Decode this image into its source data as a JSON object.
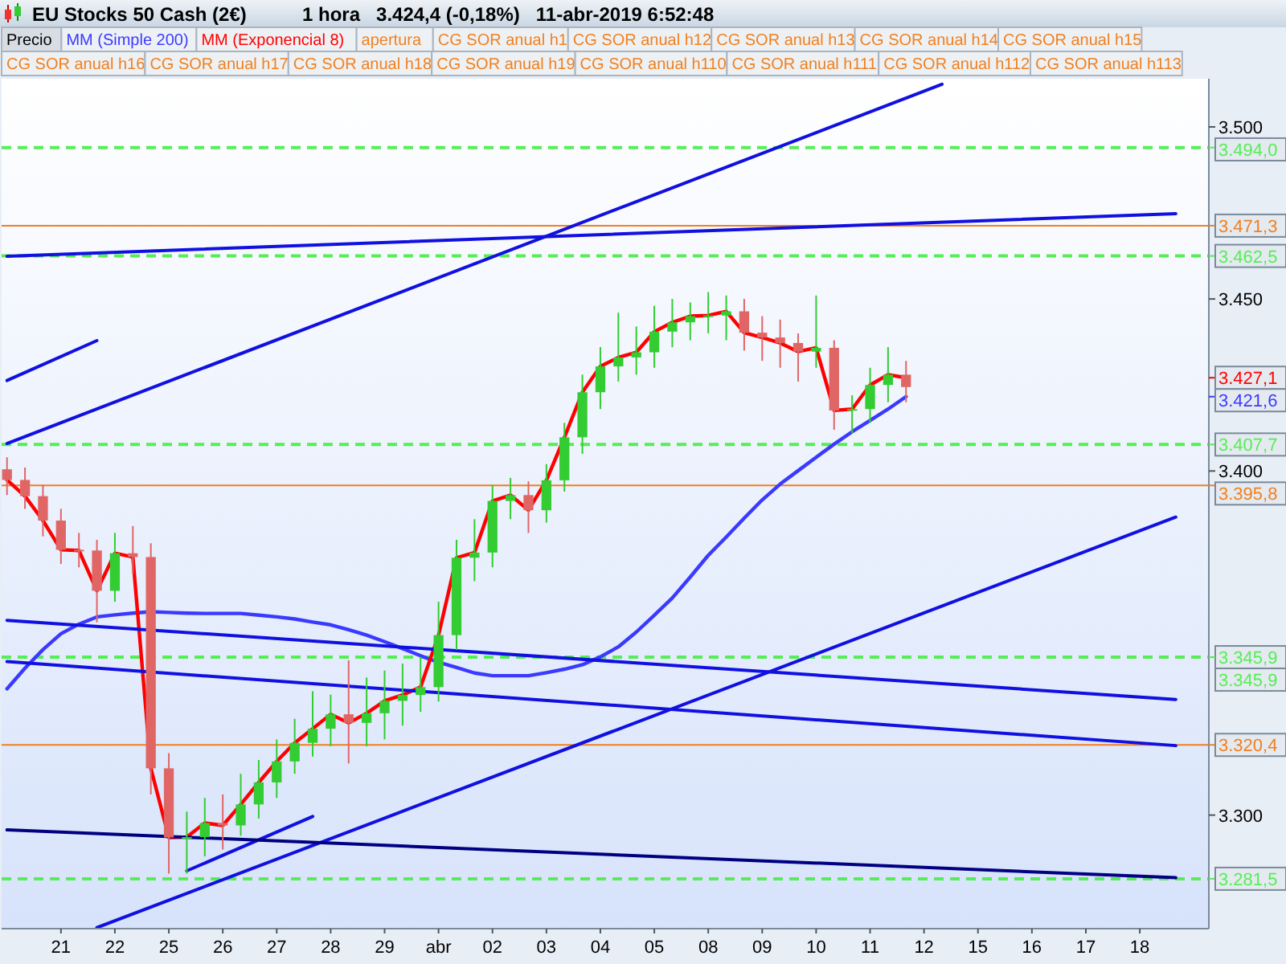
{
  "chart_data": {
    "type": "candlestick",
    "title": "EU Stocks 50 Cash (2€)",
    "subtitle": "1 hora   3.424,4 (-0,18%)   11-abr-2019 6:52:48",
    "legend": "top",
    "legend_title": "Precio",
    "ylim": [
      3267,
      3514
    ],
    "yticks": [
      {
        "value": 3300,
        "label": "3.300"
      },
      {
        "value": 3400,
        "label": "3.400"
      },
      {
        "value": 3450,
        "label": "3.450"
      },
      {
        "value": 3500,
        "label": "3.500"
      }
    ],
    "categories": [
      null,
      null,
      null,
      "21",
      null,
      null,
      "22",
      null,
      null,
      "25",
      null,
      null,
      "26",
      null,
      null,
      "27",
      null,
      null,
      "28",
      null,
      null,
      "29",
      null,
      null,
      "abr",
      null,
      null,
      "02",
      null,
      null,
      "03",
      null,
      null,
      "04",
      null,
      null,
      "05",
      null,
      null,
      "08",
      null,
      null,
      "09",
      null,
      null,
      "10",
      null,
      null,
      "11",
      null,
      null,
      "12",
      null,
      null,
      "15",
      null,
      null,
      "16",
      null,
      null,
      "17",
      null,
      null,
      "18",
      null,
      null
    ],
    "ohlc": [
      [
        3400.5,
        3404,
        3393,
        3397.4
      ],
      [
        3397.4,
        3401,
        3389,
        3392.7
      ],
      [
        3392.7,
        3396,
        3381,
        3385.6
      ],
      [
        3385.6,
        3389,
        3373,
        3377.1
      ],
      [
        3377.1,
        3382,
        3372,
        3376.9
      ],
      [
        3376.9,
        3380,
        3356,
        3365.2
      ],
      [
        3365.2,
        3382,
        3362,
        3376.1
      ],
      [
        3376.1,
        3384,
        3370,
        3375.0
      ],
      [
        3375.0,
        3379,
        3306,
        3313.6
      ],
      [
        3313.6,
        3318,
        3283,
        3293.5
      ],
      [
        3293.5,
        3301,
        3283,
        3293.6
      ],
      [
        3293.6,
        3305,
        3288,
        3297.7
      ],
      [
        3297.7,
        3306,
        3290,
        3297.0
      ],
      [
        3297.0,
        3312,
        3294,
        3303.1
      ],
      [
        3303.1,
        3316,
        3299,
        3309.5
      ],
      [
        3309.5,
        3322,
        3305,
        3315.6
      ],
      [
        3315.6,
        3328,
        3312,
        3321.0
      ],
      [
        3321.0,
        3336,
        3317,
        3325.1
      ],
      [
        3325.1,
        3335,
        3320,
        3329.3
      ],
      [
        3329.3,
        3345,
        3315,
        3326.8
      ],
      [
        3326.8,
        3340,
        3320,
        3329.6
      ],
      [
        3329.6,
        3342,
        3322,
        3333.2
      ],
      [
        3333.2,
        3344,
        3326,
        3334.9
      ],
      [
        3334.9,
        3346,
        3330,
        3337.2
      ],
      [
        3337.2,
        3362,
        3333,
        3352.3
      ],
      [
        3352.3,
        3380,
        3348,
        3374.8
      ],
      [
        3374.8,
        3386,
        3368,
        3376.3
      ],
      [
        3376.3,
        3396,
        3372,
        3391.3
      ],
      [
        3391.3,
        3398,
        3386,
        3393.0
      ],
      [
        3393.0,
        3397,
        3382,
        3388.6
      ],
      [
        3388.6,
        3402,
        3385,
        3397.3
      ],
      [
        3397.3,
        3414,
        3394,
        3409.8
      ],
      [
        3409.8,
        3428,
        3405,
        3422.9
      ],
      [
        3422.9,
        3436,
        3418,
        3430.4
      ],
      [
        3430.4,
        3446,
        3426,
        3433.0
      ],
      [
        3433.0,
        3442,
        3428,
        3434.5
      ],
      [
        3434.5,
        3448,
        3430,
        3440.5
      ],
      [
        3440.5,
        3450,
        3436,
        3443.2
      ],
      [
        3443.2,
        3449,
        3438,
        3445.0
      ],
      [
        3445.0,
        3452,
        3440,
        3445.2
      ],
      [
        3445.2,
        3451,
        3438,
        3446.4
      ],
      [
        3446.4,
        3450,
        3435,
        3440.2
      ],
      [
        3440.2,
        3445,
        3432,
        3438.8
      ],
      [
        3438.8,
        3444,
        3430,
        3437.2
      ],
      [
        3437.2,
        3440,
        3426,
        3434.7
      ],
      [
        3434.7,
        3451,
        3430,
        3435.8
      ],
      [
        3435.8,
        3438,
        3412,
        3417.6
      ],
      [
        3417.6,
        3422,
        3411,
        3418.0
      ],
      [
        3418.0,
        3430,
        3414,
        3425.0
      ],
      [
        3425.0,
        3436,
        3420,
        3428.0
      ],
      [
        3428.0,
        3432,
        3420,
        3424.4
      ],
      null,
      null,
      null,
      null,
      null,
      null,
      null,
      null,
      null,
      null,
      null,
      null,
      null,
      null,
      null
    ],
    "series": [
      {
        "type": "line",
        "name": "MM (Simple 200)",
        "color": "#3a3aff",
        "values": [
          3336.7,
          3342.7,
          3348.1,
          3352.7,
          3355.5,
          3357.6,
          3358.2,
          3358.7,
          3359.1,
          3358.9,
          3358.7,
          3358.6,
          3358.6,
          3358.6,
          3358.1,
          3357.6,
          3357.0,
          3356.1,
          3355.3,
          3353.9,
          3352.3,
          3350.4,
          3348.4,
          3346.3,
          3344.4,
          3342.9,
          3341.3,
          3340.5,
          3340.5,
          3340.5,
          3341.4,
          3342.4,
          3343.7,
          3346.0,
          3348.9,
          3353.2,
          3358.1,
          3363.1,
          3369.2,
          3375.5,
          3380.8,
          3386.3,
          3391.6,
          3396.2,
          3400.1,
          3404.0,
          3407.8,
          3411.4,
          3414.7,
          3418.0,
          3421.6,
          null,
          null,
          null,
          null,
          null,
          null,
          null,
          null,
          null,
          null,
          null,
          null,
          null,
          null,
          null
        ]
      },
      {
        "type": "line",
        "name": "MM (Exponencial 8)",
        "color": "#ff0000",
        "values": [
          3397.4,
          3392.7,
          3385.6,
          3377.1,
          3376.9,
          3365.2,
          3376.1,
          3375.0,
          3313.6,
          3293.5,
          3293.6,
          3297.7,
          3297.0,
          3303.1,
          3309.5,
          3315.6,
          3321.0,
          3325.1,
          3329.3,
          3326.8,
          3329.6,
          3333.2,
          3334.9,
          3337.2,
          3352.3,
          3374.8,
          3376.3,
          3391.3,
          3393.0,
          3388.6,
          3397.3,
          3409.8,
          3422.9,
          3430.4,
          3433.0,
          3434.5,
          3440.5,
          3443.2,
          3445.0,
          3445.2,
          3446.4,
          3440.2,
          3438.8,
          3437.2,
          3434.7,
          3435.8,
          3417.6,
          3418.0,
          3425.0,
          3428.0,
          3427.1,
          null,
          null,
          null,
          null,
          null,
          null,
          null,
          null,
          null,
          null,
          null,
          null,
          null,
          null,
          null
        ]
      },
      {
        "type": "line",
        "color": "#1010e0",
        "values": [
          3408.0,
          null,
          null,
          null,
          null,
          null,
          null,
          null,
          null,
          null,
          null,
          null,
          null,
          null,
          null,
          null,
          null,
          null,
          null,
          null,
          null,
          null,
          null,
          null,
          null,
          null,
          null,
          null,
          null,
          null,
          null,
          null,
          null,
          null,
          null,
          null,
          null,
          null,
          null,
          null,
          null,
          null,
          null,
          null,
          null,
          null,
          null,
          null,
          null,
          null,
          null,
          null,
          3512.4,
          null,
          null,
          null,
          null,
          null,
          null,
          null,
          null,
          null,
          null,
          null,
          null,
          null
        ]
      },
      {
        "type": "line",
        "color": "#1010e0",
        "values": [
          3426.3,
          null,
          null,
          null,
          null,
          3437.9,
          null,
          null,
          null,
          null,
          null,
          null,
          null,
          null,
          null,
          null,
          null,
          null,
          null,
          null,
          null,
          null,
          null,
          null,
          null,
          null,
          null,
          null,
          null,
          null,
          null,
          null,
          null,
          null,
          null,
          null,
          null,
          null,
          null,
          null,
          null,
          null,
          null,
          null,
          null,
          null,
          null,
          null,
          null,
          null,
          null,
          null,
          null,
          null,
          null,
          null,
          null,
          null,
          null,
          null,
          null,
          null,
          null,
          null,
          null,
          null
        ]
      },
      {
        "type": "line",
        "color": "#1010e0",
        "values": [
          3462.4,
          null,
          null,
          null,
          null,
          null,
          null,
          null,
          null,
          null,
          null,
          null,
          null,
          null,
          null,
          null,
          null,
          null,
          null,
          null,
          null,
          null,
          null,
          null,
          null,
          null,
          null,
          null,
          null,
          null,
          null,
          null,
          null,
          null,
          null,
          null,
          null,
          null,
          null,
          null,
          null,
          null,
          null,
          null,
          null,
          null,
          null,
          null,
          null,
          null,
          null,
          null,
          null,
          null,
          null,
          null,
          null,
          null,
          null,
          null,
          null,
          null,
          null,
          null,
          null,
          3474.8
        ]
      },
      {
        "type": "line",
        "color": "#1010e0",
        "values": [
          null,
          null,
          null,
          null,
          null,
          3267.3,
          null,
          null,
          null,
          null,
          null,
          null,
          null,
          null,
          null,
          null,
          null,
          null,
          null,
          null,
          null,
          null,
          null,
          null,
          null,
          null,
          null,
          null,
          null,
          null,
          null,
          null,
          null,
          null,
          null,
          null,
          null,
          null,
          null,
          null,
          null,
          null,
          null,
          null,
          null,
          null,
          null,
          null,
          null,
          null,
          null,
          null,
          null,
          null,
          null,
          null,
          null,
          null,
          null,
          null,
          null,
          null,
          null,
          null,
          null,
          3386.6
        ]
      },
      {
        "type": "line",
        "color": "#1010e0",
        "values": [
          null,
          null,
          null,
          null,
          null,
          null,
          null,
          null,
          null,
          null,
          3283.8,
          null,
          null,
          null,
          null,
          null,
          null,
          3299.6,
          null,
          null,
          null,
          null,
          null,
          null,
          null,
          null,
          null,
          null,
          null,
          null,
          null,
          null,
          null,
          null,
          null,
          null,
          null,
          null,
          null,
          null,
          null,
          null,
          null,
          null,
          null,
          null,
          null,
          null,
          null,
          null,
          null,
          null,
          null,
          null,
          null,
          null,
          null,
          null,
          null,
          null,
          null,
          null,
          null,
          null,
          null,
          null
        ]
      },
      {
        "type": "line",
        "color": "#1010e0",
        "values": [
          3356.6,
          null,
          null,
          null,
          null,
          null,
          null,
          null,
          null,
          null,
          null,
          null,
          null,
          null,
          null,
          null,
          null,
          null,
          null,
          null,
          null,
          null,
          null,
          null,
          null,
          null,
          null,
          null,
          null,
          null,
          null,
          null,
          null,
          null,
          null,
          null,
          null,
          null,
          null,
          null,
          null,
          null,
          null,
          null,
          null,
          null,
          null,
          null,
          null,
          null,
          null,
          null,
          null,
          null,
          null,
          null,
          null,
          null,
          null,
          null,
          null,
          null,
          null,
          null,
          null,
          3333.6
        ]
      },
      {
        "type": "line",
        "color": "#1010e0",
        "values": [
          3344.6,
          null,
          null,
          null,
          null,
          null,
          null,
          null,
          null,
          null,
          null,
          null,
          null,
          null,
          null,
          null,
          null,
          null,
          null,
          null,
          null,
          null,
          null,
          null,
          null,
          null,
          null,
          null,
          null,
          null,
          null,
          null,
          null,
          null,
          null,
          null,
          null,
          null,
          null,
          null,
          null,
          null,
          null,
          null,
          null,
          null,
          null,
          null,
          null,
          null,
          null,
          null,
          null,
          null,
          null,
          null,
          null,
          null,
          null,
          null,
          null,
          null,
          null,
          null,
          null,
          3320.2
        ]
      },
      {
        "type": "line",
        "color": "#000080",
        "values": [
          3295.7,
          null,
          null,
          null,
          null,
          null,
          null,
          null,
          null,
          null,
          null,
          null,
          null,
          null,
          null,
          null,
          null,
          null,
          null,
          null,
          null,
          null,
          null,
          null,
          null,
          null,
          null,
          null,
          null,
          null,
          null,
          null,
          null,
          null,
          null,
          null,
          null,
          null,
          null,
          null,
          null,
          null,
          null,
          null,
          null,
          null,
          null,
          null,
          null,
          null,
          null,
          null,
          null,
          null,
          null,
          null,
          null,
          null,
          null,
          null,
          null,
          null,
          null,
          null,
          null,
          3281.8
        ]
      }
    ],
    "ref_lines": [
      {
        "axis": "y",
        "value": 3494.0,
        "label": "3.494,0",
        "color": "#55ee55",
        "line_style": "dashed"
      },
      {
        "axis": "y",
        "value": 3471.3,
        "label": "3.471,3",
        "color": "#f08020",
        "line_style": "solid"
      },
      {
        "axis": "y",
        "value": 3462.5,
        "label": "3.462,5",
        "color": "#55ee55",
        "line_style": "dashed"
      },
      {
        "axis": "y",
        "value": 3407.7,
        "label": "3.407,7",
        "color": "#55ee55",
        "line_style": "dashed"
      },
      {
        "axis": "y",
        "value": 3395.8,
        "label": "3.395,8",
        "color": "#f08020",
        "line_style": "solid"
      },
      {
        "axis": "y",
        "value": 3345.9,
        "label": "3.345,9",
        "color": "#55ee55",
        "line_style": "dashed"
      },
      {
        "axis": "y",
        "value": 3320.4,
        "label": "3.320,4",
        "color": "#f08020",
        "line_style": "solid"
      },
      {
        "axis": "y",
        "value": 3281.5,
        "label": "3.281,5",
        "color": "#55ee55",
        "line_style": "dashed"
      }
    ],
    "annotations": [
      "apertura",
      "CG SOR anual h1",
      "CG SOR anual h12",
      "CG SOR anual h13",
      "CG SOR anual h14",
      "CG SOR anual h15",
      "CG SOR anual h16",
      "CG SOR anual h17",
      "CG SOR anual h18",
      "CG SOR anual h19",
      "CG SOR anual h110",
      "CG SOR anual h111",
      "CG SOR anual h112",
      "CG SOR anual h113",
      "3.427,1",
      "3.421,6",
      "3.345,9"
    ]
  }
}
